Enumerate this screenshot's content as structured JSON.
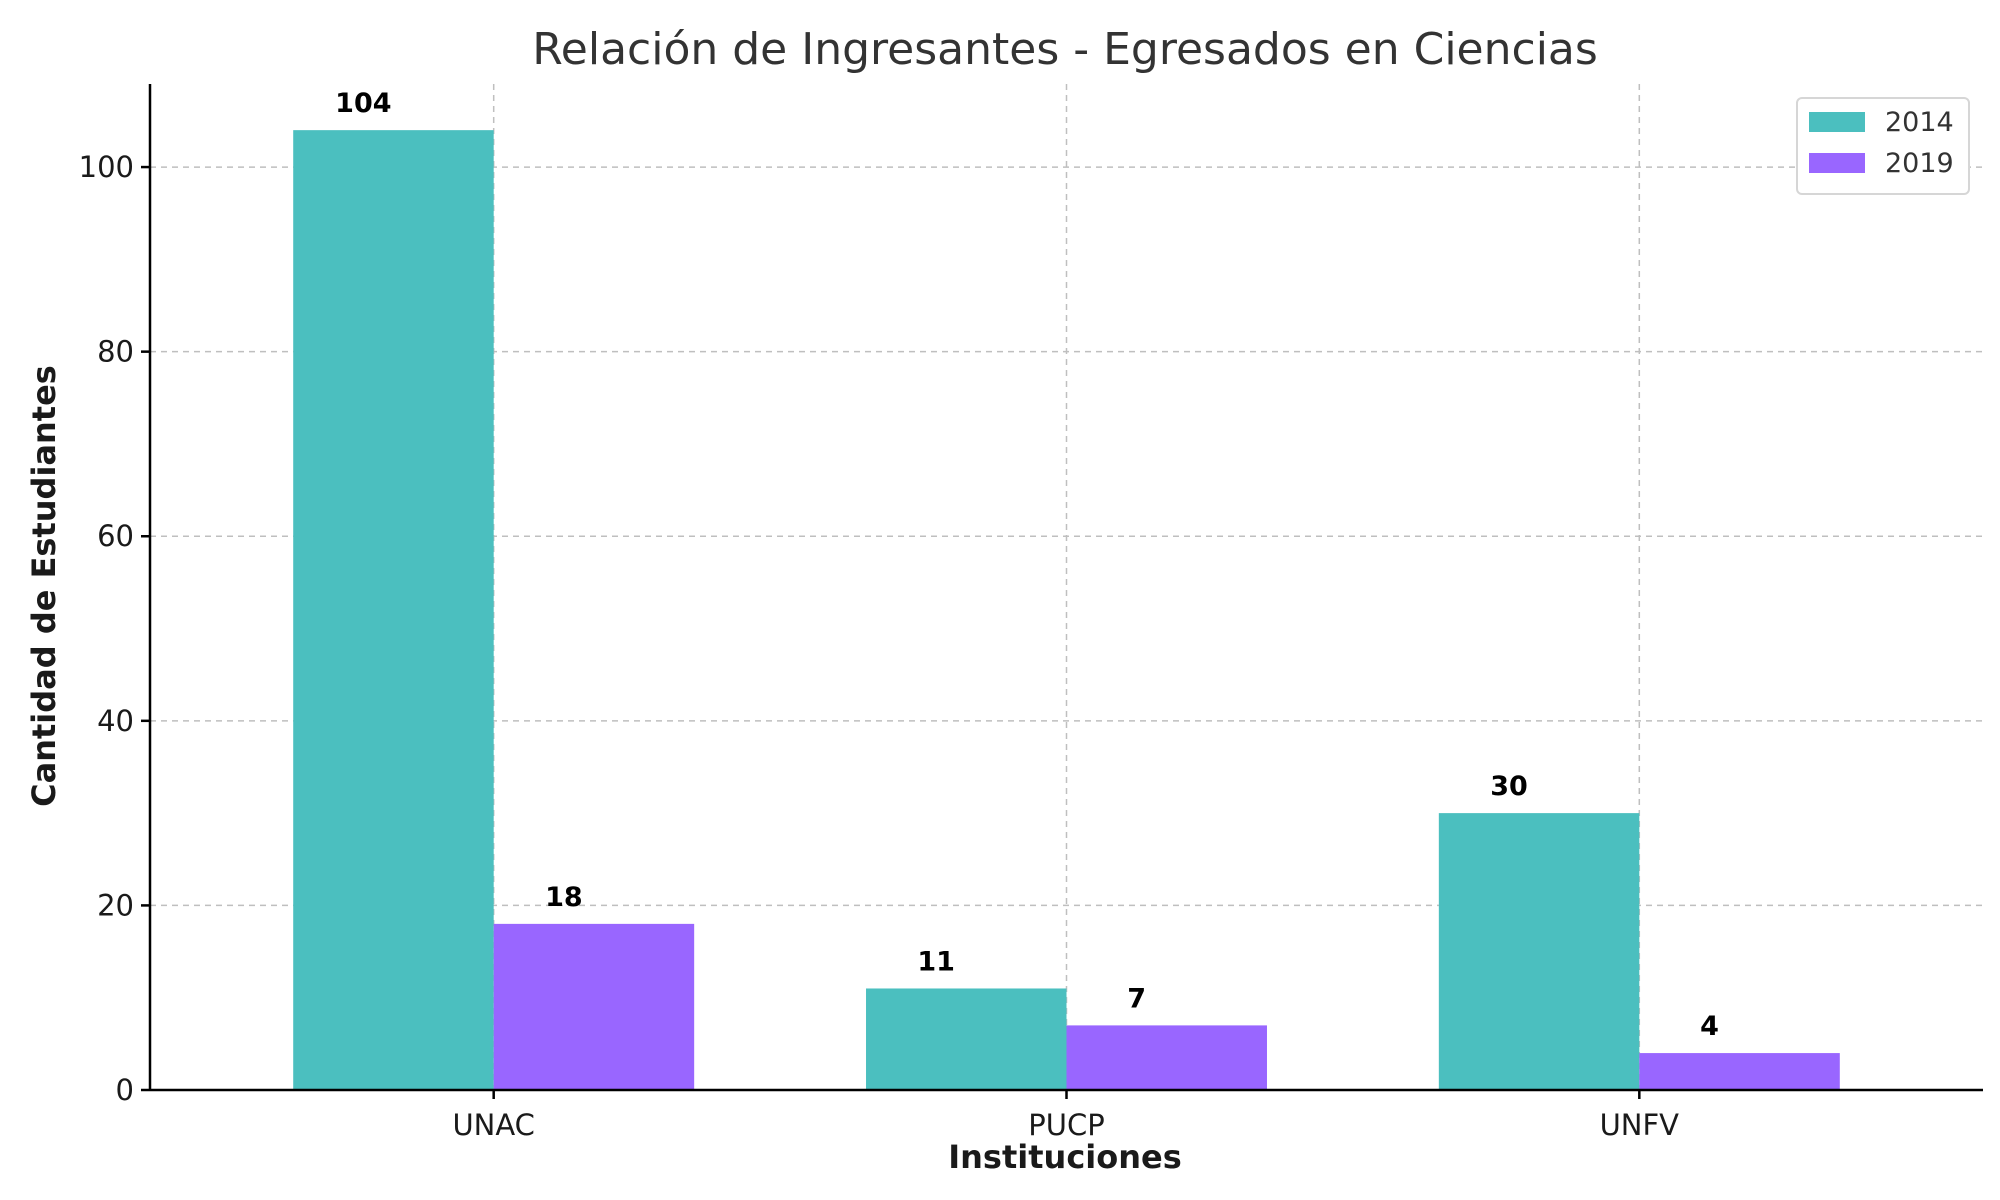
{
  "chart_data": {
    "type": "bar",
    "title": "Relación de Ingresantes - Egresados en Ciencias",
    "xlabel": "Instituciones",
    "ylabel": "Cantidad de Estudiantes",
    "categories": [
      "UNAC",
      "PUCP",
      "UNFV"
    ],
    "series": [
      {
        "name": "2014",
        "values": [
          104,
          11,
          30
        ],
        "color": "#4bbfbf"
      },
      {
        "name": "2019",
        "values": [
          18,
          7,
          4
        ],
        "color": "#9966ff"
      }
    ],
    "ylim": [
      0,
      109
    ],
    "yticks": [
      0,
      20,
      40,
      60,
      80,
      100
    ],
    "grid": true,
    "legend": "top-right"
  }
}
